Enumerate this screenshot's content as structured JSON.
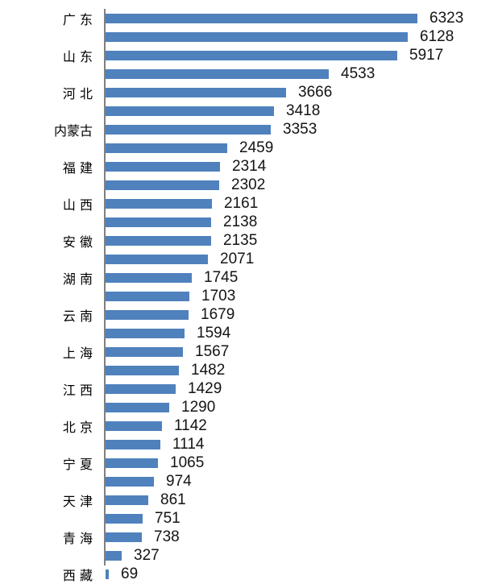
{
  "chart_data": {
    "type": "bar",
    "orientation": "horizontal",
    "title": "",
    "xlabel": "",
    "ylabel": "",
    "grid": false,
    "legend": false,
    "bar_color": "#4F81BD",
    "axis_line_color": "#808080",
    "value_label_color": "#141414",
    "category_label_color": "#000000",
    "value_max": 6323,
    "categories": [
      "广 东",
      "",
      "山 东",
      "",
      "河 北",
      "",
      "内蒙古",
      "",
      "福 建",
      "",
      "山 西",
      "",
      "安 徽",
      "",
      "湖 南",
      "",
      "云 南",
      "",
      "上 海",
      "",
      "江 西",
      "",
      "北 京",
      "",
      "宁 夏",
      "",
      "天 津",
      "",
      "青 海",
      "",
      "西 藏"
    ],
    "values": [
      6323,
      6128,
      5917,
      4533,
      3666,
      3418,
      3353,
      2459,
      2314,
      2302,
      2161,
      2138,
      2135,
      2071,
      1745,
      1703,
      1679,
      1594,
      1567,
      1482,
      1429,
      1290,
      1142,
      1114,
      1065,
      974,
      861,
      751,
      738,
      327,
      69
    ],
    "rows": [
      {
        "label": "广 东",
        "value": 6323
      },
      {
        "label": "",
        "value": 6128
      },
      {
        "label": "山 东",
        "value": 5917
      },
      {
        "label": "",
        "value": 4533
      },
      {
        "label": "河 北",
        "value": 3666
      },
      {
        "label": "",
        "value": 3418
      },
      {
        "label": "内蒙古",
        "value": 3353
      },
      {
        "label": "",
        "value": 2459
      },
      {
        "label": "福 建",
        "value": 2314
      },
      {
        "label": "",
        "value": 2302
      },
      {
        "label": "山 西",
        "value": 2161
      },
      {
        "label": "",
        "value": 2138
      },
      {
        "label": "安 徽",
        "value": 2135
      },
      {
        "label": "",
        "value": 2071
      },
      {
        "label": "湖 南",
        "value": 1745
      },
      {
        "label": "",
        "value": 1703
      },
      {
        "label": "云 南",
        "value": 1679
      },
      {
        "label": "",
        "value": 1594
      },
      {
        "label": "上 海",
        "value": 1567
      },
      {
        "label": "",
        "value": 1482
      },
      {
        "label": "江 西",
        "value": 1429
      },
      {
        "label": "",
        "value": 1290
      },
      {
        "label": "北 京",
        "value": 1142
      },
      {
        "label": "",
        "value": 1114
      },
      {
        "label": "宁 夏",
        "value": 1065
      },
      {
        "label": "",
        "value": 974
      },
      {
        "label": "天 津",
        "value": 861
      },
      {
        "label": "",
        "value": 751
      },
      {
        "label": "青 海",
        "value": 738
      },
      {
        "label": "",
        "value": 327
      },
      {
        "label": "西 藏",
        "value": 69
      }
    ]
  }
}
